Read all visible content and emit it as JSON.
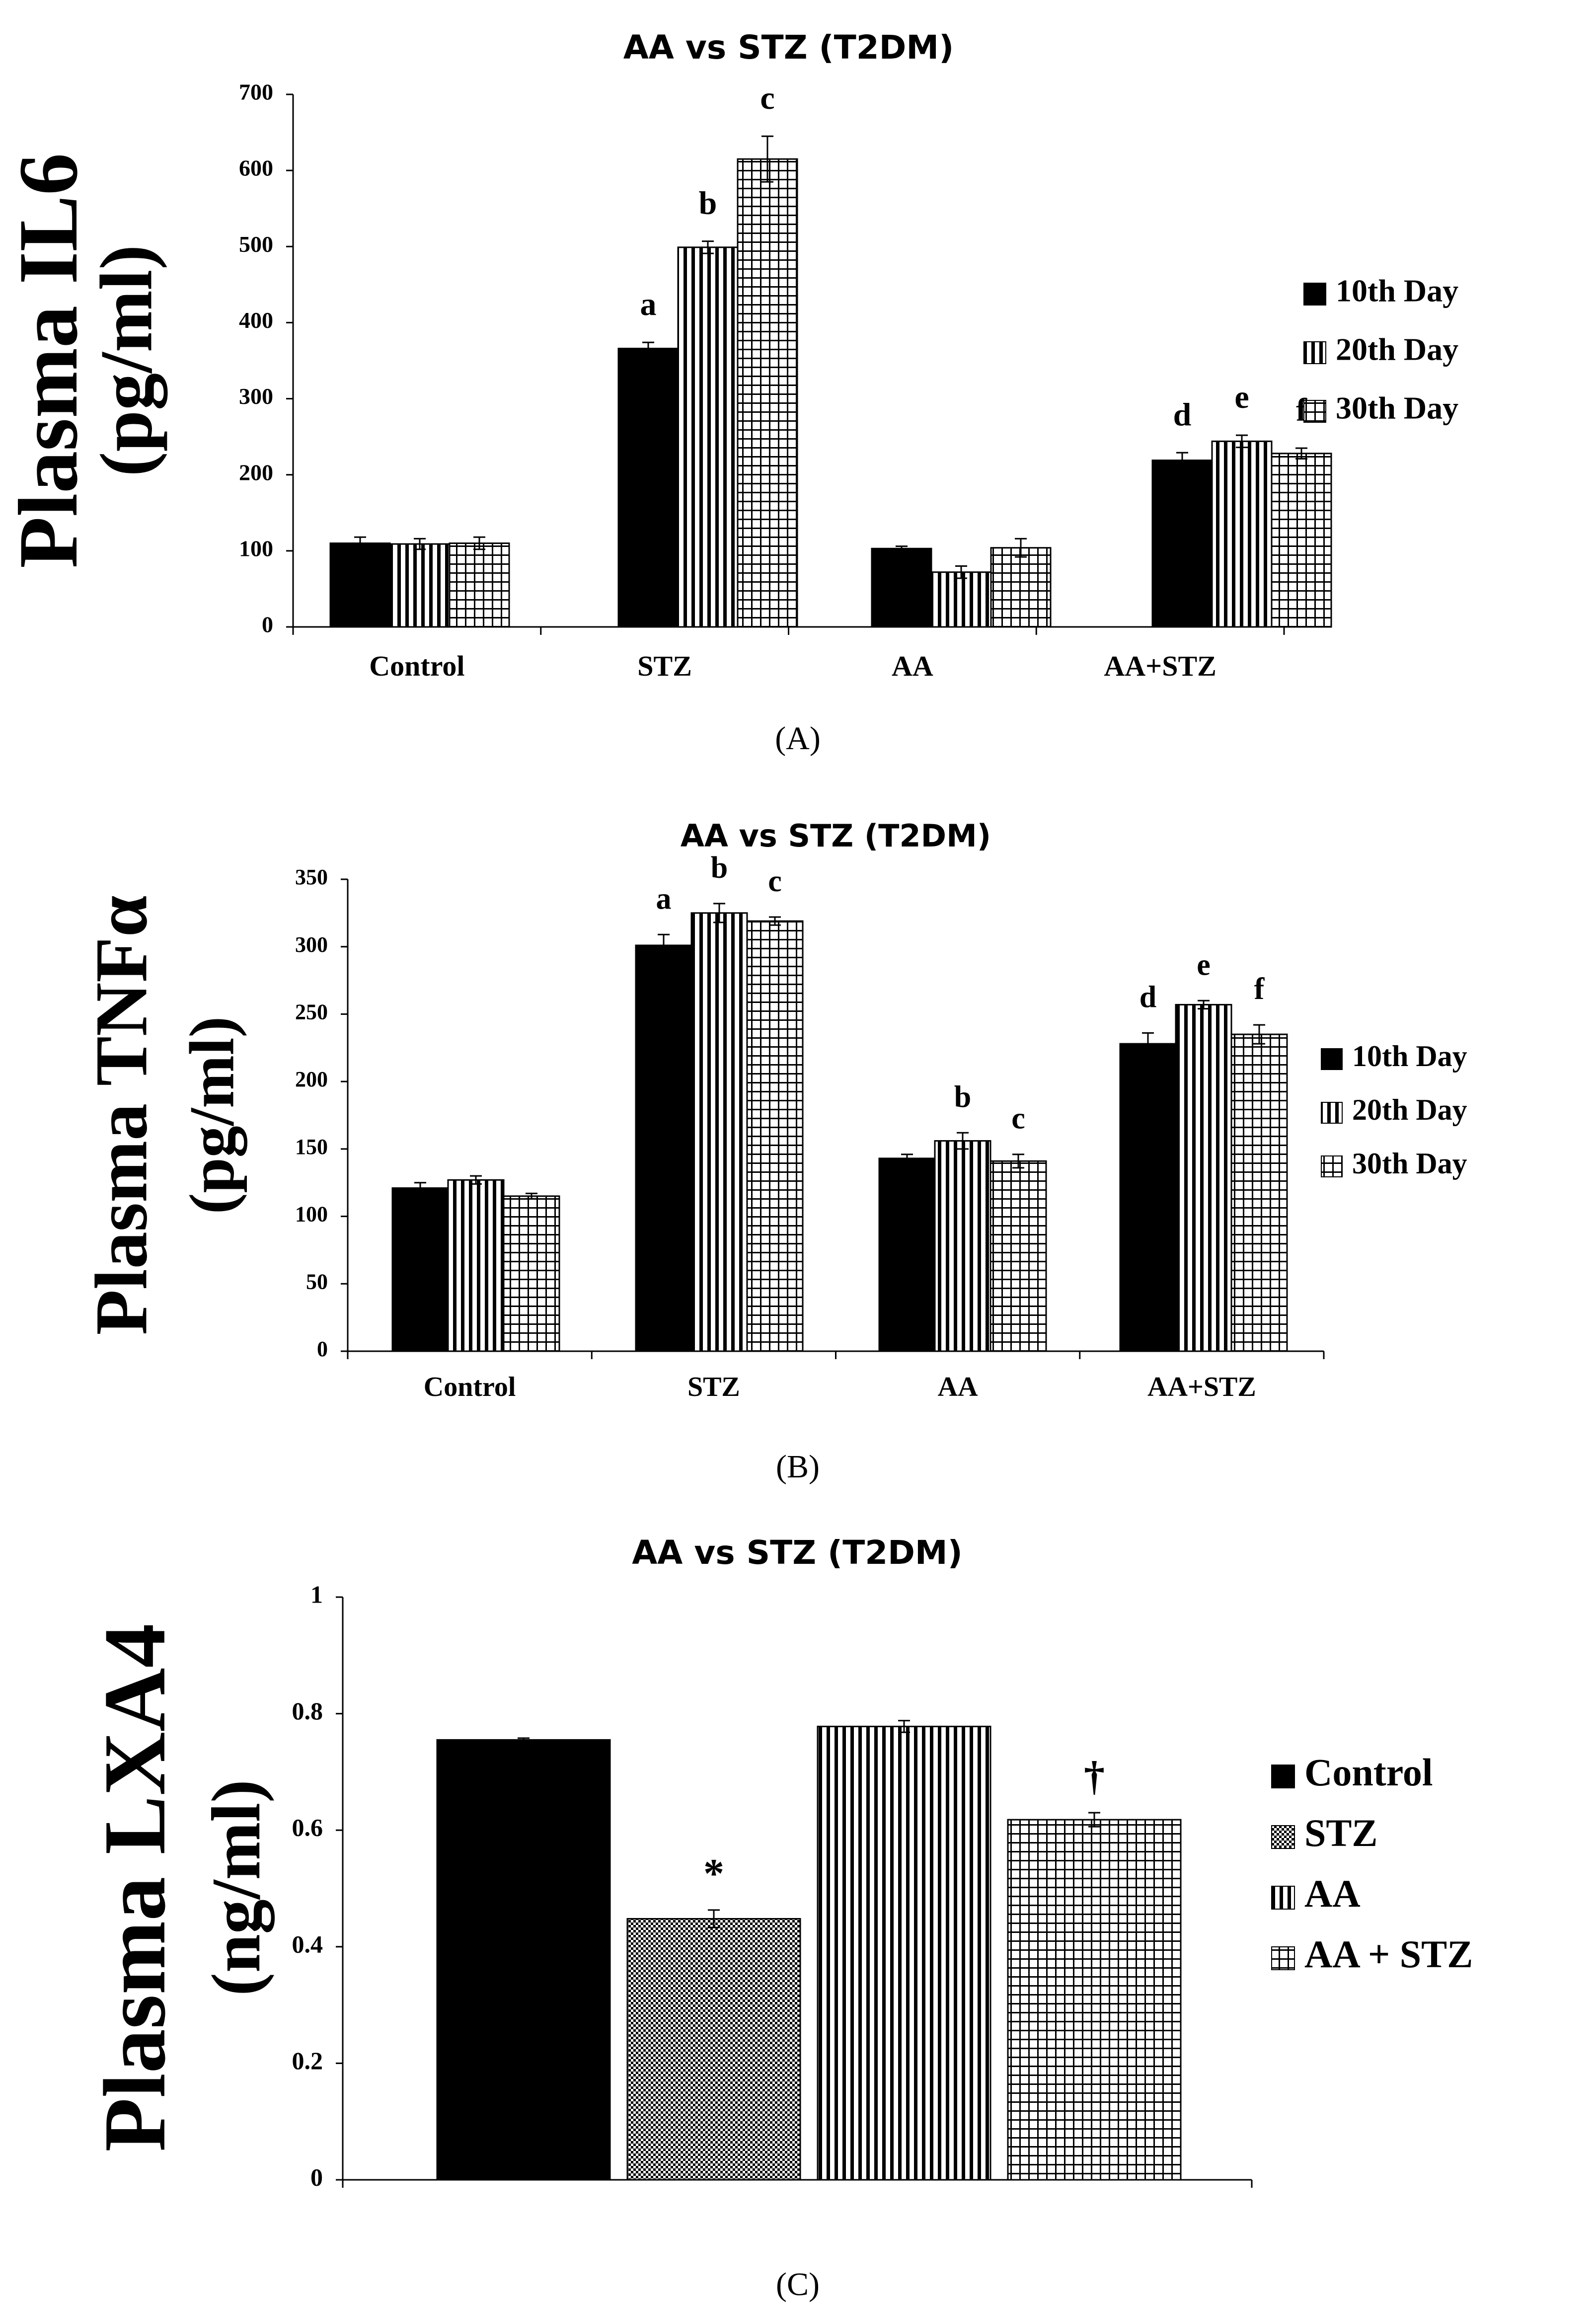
{
  "chart_data": [
    {
      "id": "A",
      "type": "bar",
      "title": "AA vs STZ (T2DM)",
      "ylabel_line1": "Plasma IL6",
      "ylabel_line2": "(pg/ml)",
      "xlabel": "",
      "ylim": [
        0,
        700
      ],
      "yticks": [
        0,
        100,
        200,
        300,
        400,
        500,
        600,
        700
      ],
      "categories": [
        "Control",
        "STZ",
        "AA",
        "AA+STZ"
      ],
      "series": [
        {
          "name": "10th Day",
          "pattern": "solid",
          "values": [
            110,
            366,
            103,
            219
          ],
          "errors": [
            8,
            8,
            3,
            10
          ]
        },
        {
          "name": "20th Day",
          "pattern": "vertical",
          "values": [
            109,
            499,
            72,
            244
          ],
          "errors": [
            7,
            8,
            8,
            8
          ]
        },
        {
          "name": "30th Day",
          "pattern": "grid",
          "values": [
            110,
            615,
            104,
            228
          ],
          "errors": [
            8,
            30,
            12,
            7
          ]
        }
      ],
      "annotations": [
        {
          "category": 1,
          "series": 0,
          "text": "a"
        },
        {
          "category": 1,
          "series": 1,
          "text": "b"
        },
        {
          "category": 1,
          "series": 2,
          "text": "c"
        },
        {
          "category": 3,
          "series": 0,
          "text": "d"
        },
        {
          "category": 3,
          "series": 1,
          "text": "e"
        },
        {
          "category": 3,
          "series": 2,
          "text": "f"
        }
      ],
      "caption": "(A)"
    },
    {
      "id": "B",
      "type": "bar",
      "title": "AA vs STZ (T2DM)",
      "ylabel_line1": "Plasma TNFα",
      "ylabel_line2": "(pg/ml)",
      "xlabel": "",
      "ylim": [
        0,
        350
      ],
      "yticks": [
        0,
        50,
        100,
        150,
        200,
        250,
        300,
        350
      ],
      "categories": [
        "Control",
        "STZ",
        "AA",
        "AA+STZ"
      ],
      "series": [
        {
          "name": "10th Day",
          "pattern": "solid",
          "values": [
            121,
            301,
            143,
            228
          ],
          "errors": [
            4,
            8,
            3,
            8
          ]
        },
        {
          "name": "20th Day",
          "pattern": "vertical",
          "values": [
            127,
            325,
            156,
            257
          ],
          "errors": [
            3,
            7,
            6,
            3
          ]
        },
        {
          "name": "30th Day",
          "pattern": "grid",
          "values": [
            115,
            319,
            141,
            235
          ],
          "errors": [
            2,
            3,
            5,
            7
          ]
        }
      ],
      "annotations": [
        {
          "category": 1,
          "series": 0,
          "text": "a"
        },
        {
          "category": 1,
          "series": 1,
          "text": "b"
        },
        {
          "category": 1,
          "series": 2,
          "text": "c"
        },
        {
          "category": 2,
          "series": 1,
          "text": "b"
        },
        {
          "category": 2,
          "series": 2,
          "text": "c"
        },
        {
          "category": 3,
          "series": 0,
          "text": "d"
        },
        {
          "category": 3,
          "series": 1,
          "text": "e"
        },
        {
          "category": 3,
          "series": 2,
          "text": "f"
        }
      ],
      "caption": "(B)"
    },
    {
      "id": "C",
      "type": "bar",
      "title": "AA vs STZ (T2DM)",
      "ylabel_line1": "Plasma LXA4",
      "ylabel_line2": "(ng/ml)",
      "xlabel": "",
      "ylim": [
        0,
        1
      ],
      "yticks": [
        "0",
        "0.2",
        "0.4",
        "0.6",
        "0.8",
        "1"
      ],
      "categories": [
        ""
      ],
      "series": [
        {
          "name": "Control",
          "pattern": "solid",
          "values": [
            0.755
          ],
          "errors": [
            0.003
          ]
        },
        {
          "name": "STZ",
          "pattern": "dots",
          "values": [
            0.448
          ],
          "errors": [
            0.015
          ]
        },
        {
          "name": "AA",
          "pattern": "vertical",
          "values": [
            0.778
          ],
          "errors": [
            0.01
          ]
        },
        {
          "name": "AA + STZ",
          "pattern": "grid",
          "values": [
            0.618
          ],
          "errors": [
            0.012
          ]
        }
      ],
      "annotations": [
        {
          "category": 0,
          "series": 1,
          "text": "*"
        },
        {
          "category": 0,
          "series": 3,
          "text": "†"
        }
      ],
      "caption": "(C)"
    }
  ]
}
